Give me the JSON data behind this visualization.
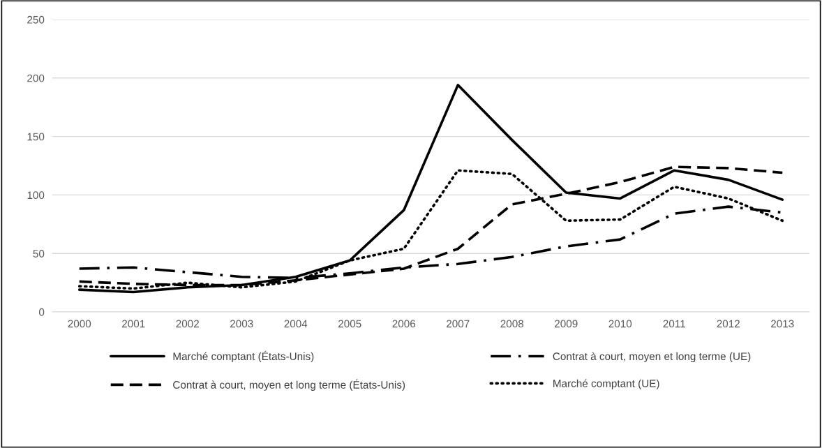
{
  "chart_data": {
    "type": "line",
    "categories": [
      "2000",
      "2001",
      "2002",
      "2003",
      "2004",
      "2005",
      "2006",
      "2007",
      "2008",
      "2009",
      "2010",
      "2011",
      "2012",
      "2013"
    ],
    "series": [
      {
        "name": "Marché comptant (États-Unis)",
        "color": "#000000",
        "line_style": "solid",
        "values": [
          19,
          17,
          21,
          23,
          30,
          44,
          87,
          194,
          147,
          102,
          97,
          121,
          113,
          96
        ]
      },
      {
        "name": "Contrat à court, moyen et long terme (États-Unis)",
        "color": "#000000",
        "line_style": "dashed",
        "values": [
          26,
          24,
          23,
          23,
          27,
          32,
          37,
          54,
          92,
          101,
          111,
          124,
          123,
          119
        ]
      },
      {
        "name": "Contrat à court, moyen et long terme (UE)",
        "color": "#000000",
        "line_style": "dashdot",
        "values": [
          37,
          38,
          34,
          30,
          29,
          33,
          38,
          41,
          47,
          56,
          62,
          84,
          90,
          85
        ]
      },
      {
        "name": "Marché comptant (UE)",
        "color": "#000000",
        "line_style": "dotted",
        "values": [
          22,
          20,
          25,
          21,
          26,
          44,
          54,
          121,
          118,
          78,
          79,
          107,
          97,
          78
        ]
      }
    ],
    "ylim": [
      0,
      250
    ],
    "yticks": [
      0,
      50,
      100,
      150,
      200,
      250
    ],
    "grid": "y",
    "legend": "bottom",
    "marker": "none"
  }
}
